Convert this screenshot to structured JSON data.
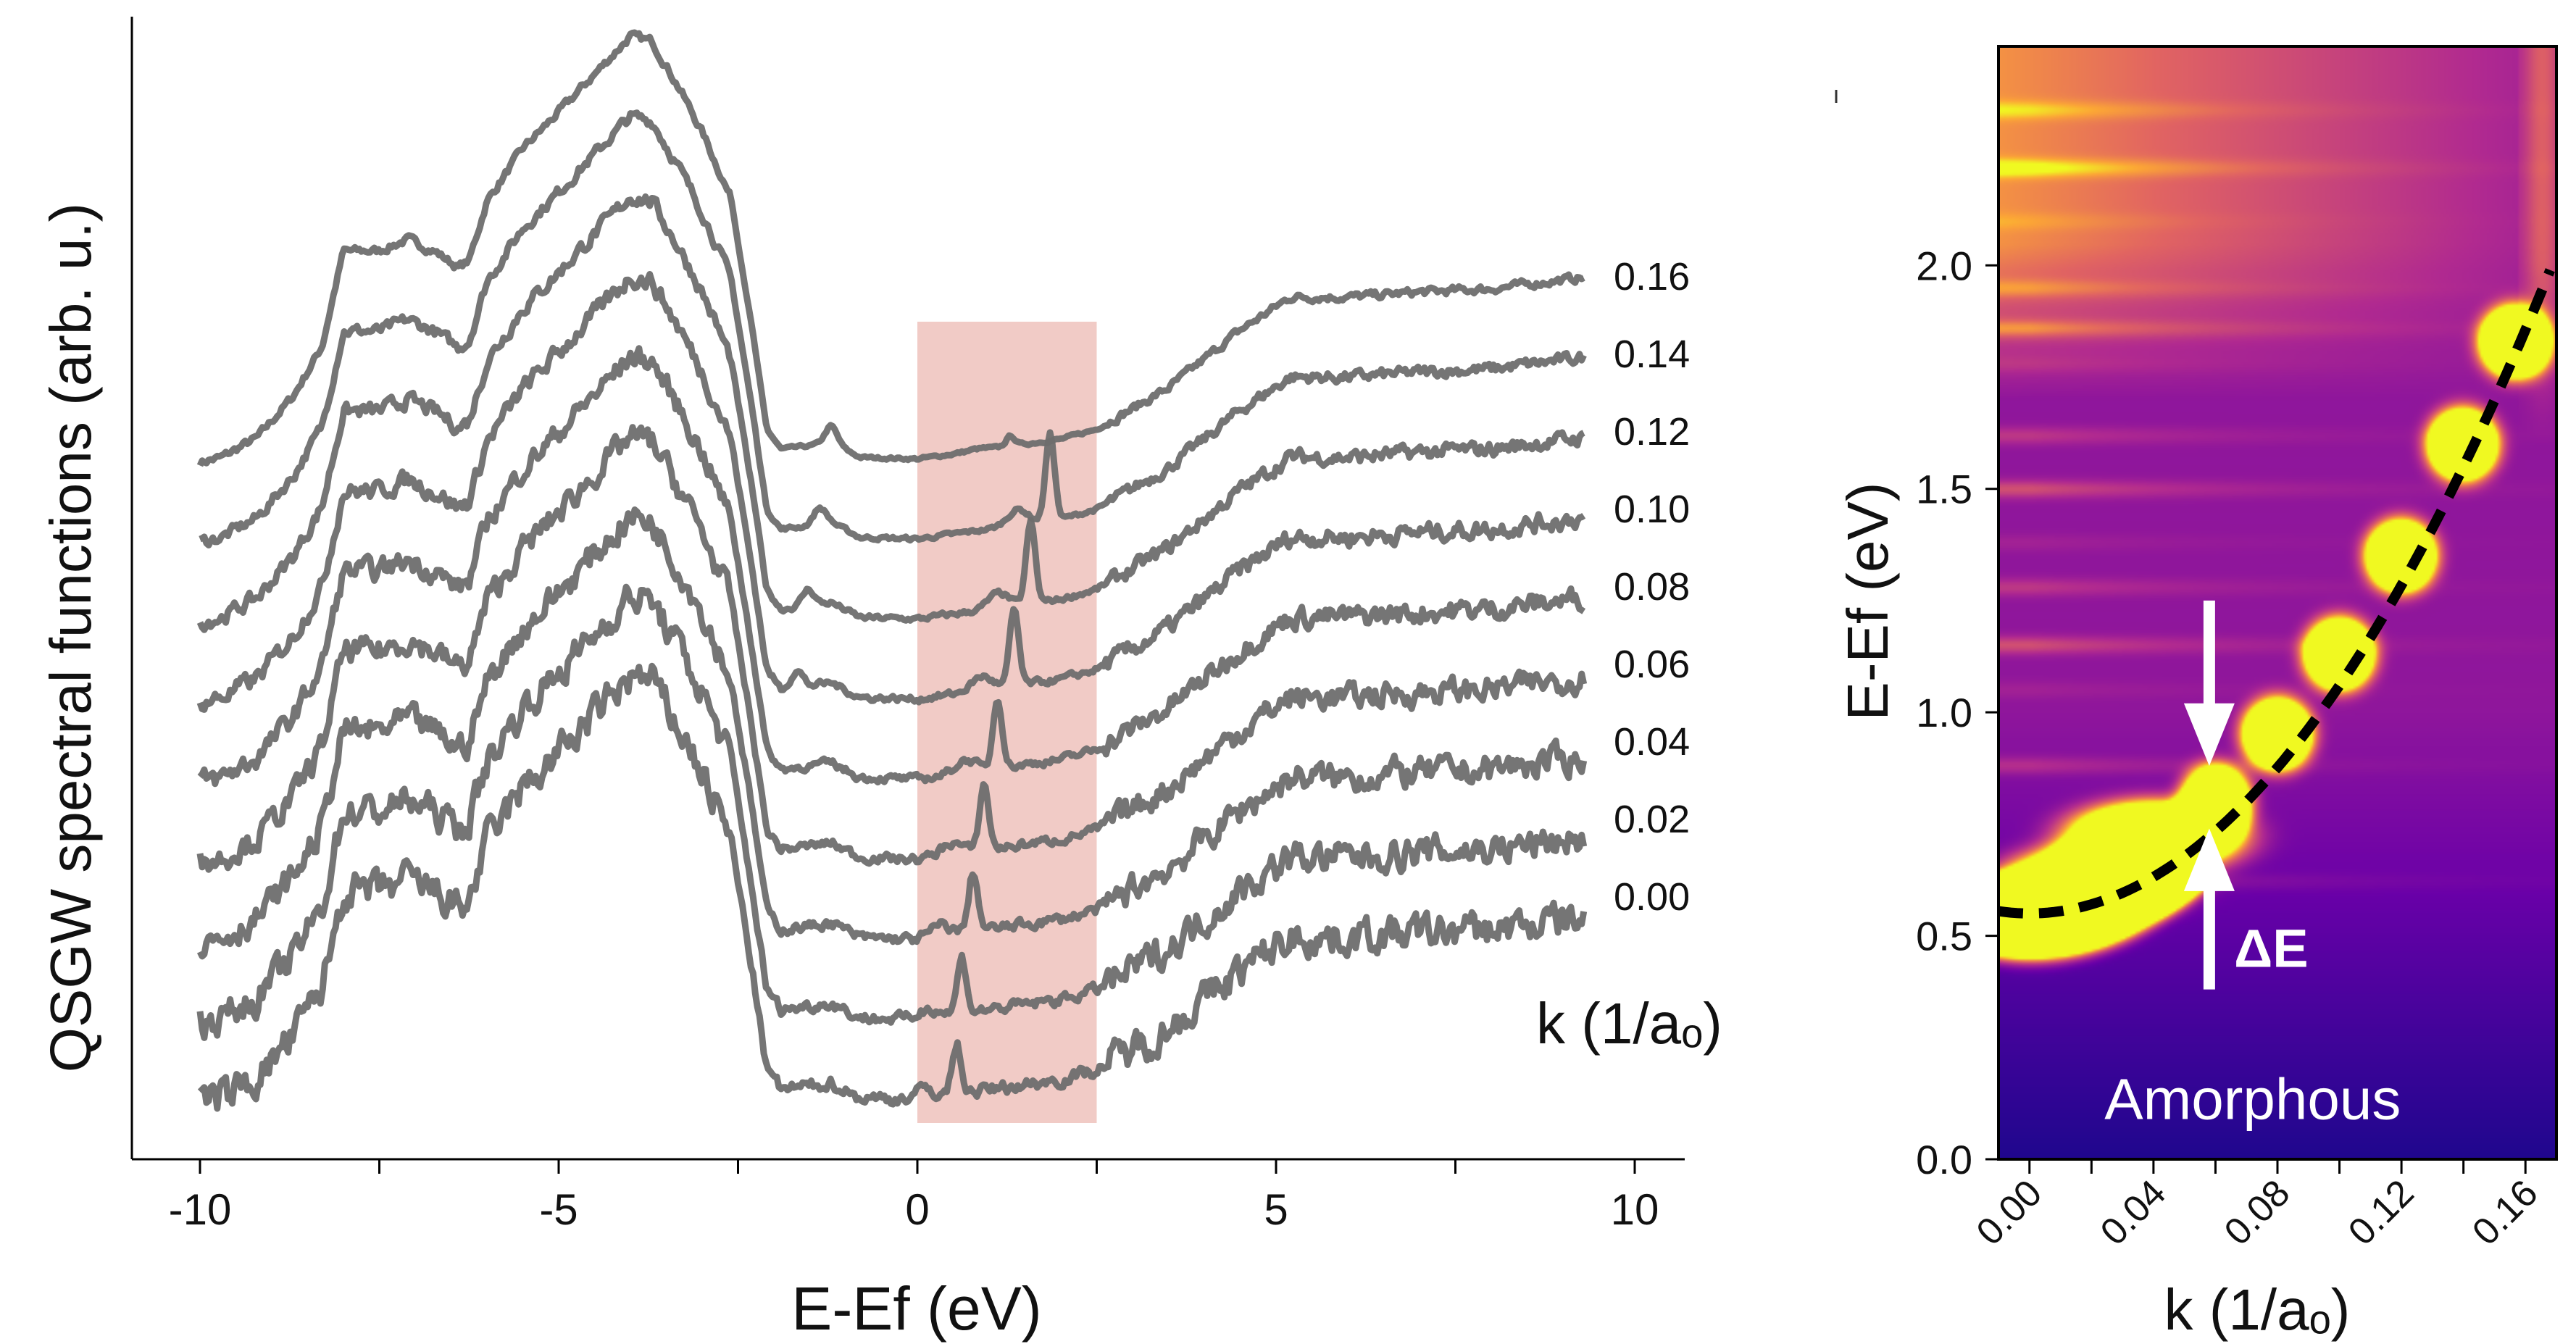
{
  "chart_data": [
    {
      "type": "line",
      "ylabel": "QSGW spectral functions (arb. u.)",
      "xlabel": "E-Ef (eV)",
      "xlim": [
        -11,
        10.5
      ],
      "x_ticks": [
        "-10",
        "-5",
        "0",
        "5",
        "10"
      ],
      "x_tick_values": [
        -10,
        -5,
        0,
        5,
        10
      ],
      "x_minor_ticks": [
        -7.5,
        -2.5,
        2.5,
        7.5
      ],
      "legend_title": "k (1/aₒ)",
      "highlight_band": {
        "from": 0,
        "to": 2.5,
        "color": "#e8a9a0"
      },
      "line_color": "#6e6e6e",
      "profile_note_points": {
        "E": [
          -10,
          -9.7,
          -9.2,
          -8.7,
          -8.3,
          -8.0,
          -7.5,
          -7.1,
          -6.7,
          -6.4,
          -6.25,
          -6.0,
          -5.5,
          -5.0,
          -4.5,
          -4.0,
          -3.7,
          -3.3,
          -3.0,
          -2.6,
          -2.3,
          -2.1,
          -1.9,
          -1.5,
          -1.2,
          -0.8,
          0,
          1.0,
          2.0,
          2.5,
          3.5,
          4.5,
          5.2,
          6.0,
          7.0,
          8.0,
          9.3
        ],
        "A": [
          0,
          3,
          15,
          40,
          70,
          128,
          128,
          135,
          127,
          118,
          122,
          158,
          190,
          212,
          235,
          258,
          255,
          225,
          200,
          160,
          80,
          20,
          8,
          10,
          12,
          3,
          2,
          8,
          14,
          20,
          45,
          80,
          100,
          100,
          103,
          105,
          112
        ]
      },
      "series": [
        {
          "name": "0.16",
          "k": 0.16,
          "peak_energy": null
        },
        {
          "name": "0.14",
          "k": 0.14,
          "peak_energy": 1.85
        },
        {
          "name": "0.12",
          "k": 0.12,
          "peak_energy": 1.58
        },
        {
          "name": "0.10",
          "k": 0.1,
          "peak_energy": 1.35
        },
        {
          "name": "0.08",
          "k": 0.08,
          "peak_energy": 1.12
        },
        {
          "name": "0.06",
          "k": 0.06,
          "peak_energy": 0.93
        },
        {
          "name": "0.04",
          "k": 0.04,
          "peak_energy": 0.78
        },
        {
          "name": "0.02",
          "k": 0.02,
          "peak_energy": 0.62
        },
        {
          "name": "0.00",
          "k": 0.0,
          "peak_energy": 0.55
        }
      ]
    },
    {
      "type": "heatmap",
      "xlabel": "k (1/aₒ)",
      "ylabel": "E-Ef (eV)",
      "xlim": [
        -0.01,
        0.17
      ],
      "ylim": [
        0.0,
        2.49
      ],
      "x_ticks": [
        "0.00",
        "0.04",
        "0.08",
        "0.12",
        "0.16"
      ],
      "x_tick_values": [
        0.0,
        0.04,
        0.08,
        0.12,
        0.16
      ],
      "y_ticks": [
        "0.0",
        "0.5",
        "1.0",
        "1.5",
        "2.0"
      ],
      "y_tick_values": [
        0.0,
        0.5,
        1.0,
        1.5,
        2.0
      ],
      "colormap": "plasma",
      "dispersion_fit": {
        "style": "dashed",
        "color": "#000000",
        "E0": 0.55,
        "curvature": 51
      },
      "band_points": {
        "k": [
          0.0,
          0.02,
          0.04,
          0.06,
          0.08,
          0.1,
          0.12,
          0.14,
          0.157
        ],
        "E": [
          0.55,
          0.62,
          0.72,
          0.8,
          0.95,
          1.13,
          1.35,
          1.6,
          1.83
        ]
      },
      "annotations": {
        "gap_label": "ΔE",
        "material": "Amorphous"
      }
    }
  ]
}
